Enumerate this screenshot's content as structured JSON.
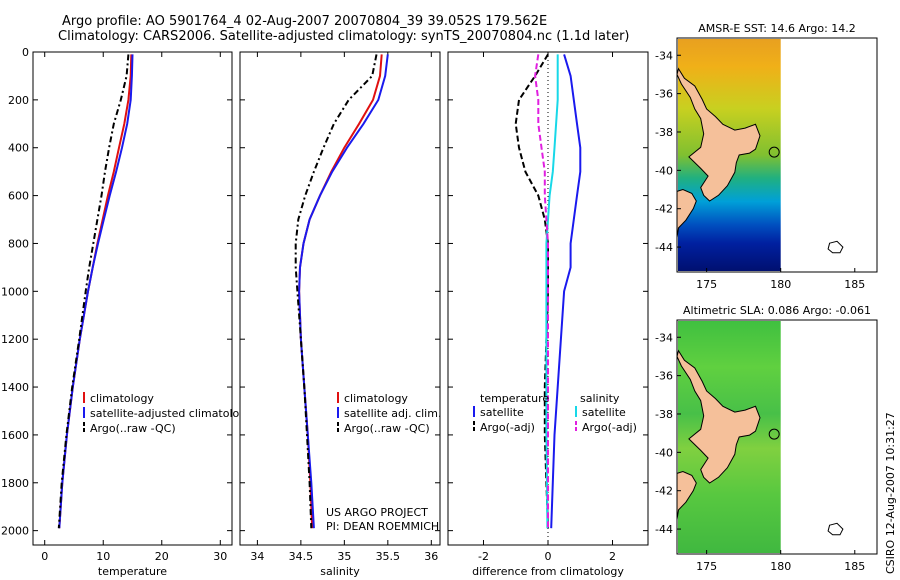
{
  "header": {
    "line1": "Argo profile: AO 5901764_4 02-Aug-2007 20070804_39 39.052S 179.562E",
    "line2": "Climatology: CARS2006. Satellite-adjusted climatology: synTS_20070804.nc (1.1d later)"
  },
  "colors": {
    "climatology": "#e01010",
    "satellite": "#1a1aee",
    "argo": "#000000",
    "satellite_salinity": "#18d8e8",
    "argo_salinity_adj": "#e020e0",
    "land": "#f5c09a"
  },
  "chart_data": [
    {
      "type": "line",
      "id": "temperature",
      "xlabel": "temperature",
      "ylabel": "",
      "xlim": [
        -2,
        32
      ],
      "ylim": [
        2060,
        0
      ],
      "xticks": [
        0,
        10,
        20,
        30
      ],
      "yticks": [
        0,
        200,
        400,
        600,
        800,
        1000,
        1200,
        1400,
        1600,
        1800,
        2000
      ],
      "legend": [
        "climatology",
        "satellite-adjusted climatology",
        "Argo(..raw -QC)"
      ],
      "series": [
        {
          "name": "climatology",
          "color": "#e01010",
          "dash": "",
          "depth": [
            10,
            100,
            200,
            300,
            400,
            500,
            600,
            700,
            800,
            900,
            1000,
            1200,
            1400,
            1600,
            1800,
            1990
          ],
          "values": [
            14.8,
            14.7,
            14.3,
            13.6,
            12.7,
            11.8,
            10.8,
            9.9,
            9.0,
            8.2,
            7.4,
            6.0,
            4.8,
            3.8,
            3.0,
            2.5
          ]
        },
        {
          "name": "satellite-adjusted climatology",
          "color": "#1a1aee",
          "dash": "",
          "depth": [
            10,
            100,
            200,
            300,
            400,
            500,
            600,
            700,
            800,
            900,
            1000,
            1200,
            1400,
            1600,
            1800,
            1990
          ],
          "values": [
            15.0,
            14.9,
            14.7,
            14.1,
            13.2,
            12.2,
            11.1,
            10.1,
            9.1,
            8.2,
            7.4,
            6.0,
            4.8,
            3.8,
            3.0,
            2.5
          ]
        },
        {
          "name": "Argo(..raw -QC)",
          "color": "#000000",
          "dash": "6,3,2,3",
          "depth": [
            10,
            100,
            200,
            300,
            400,
            500,
            600,
            700,
            800,
            900,
            1000,
            1200,
            1400,
            1600,
            1800,
            1990
          ],
          "values": [
            14.3,
            14.0,
            13.0,
            11.8,
            11.0,
            10.3,
            9.7,
            9.0,
            8.3,
            7.6,
            7.0,
            5.9,
            4.7,
            3.7,
            2.9,
            2.4
          ]
        }
      ]
    },
    {
      "type": "line",
      "id": "salinity",
      "xlabel": "salinity",
      "ylabel": "",
      "xlim": [
        33.8,
        36.1
      ],
      "ylim": [
        2060,
        0
      ],
      "xticks": [
        34,
        34.5,
        35,
        35.5,
        36
      ],
      "xticklabels": [
        "34",
        "34.5",
        "35",
        "35.5",
        "36"
      ],
      "legend": [
        "climatology",
        "satellite adj. clim.",
        "Argo(..raw -QC)"
      ],
      "annotation": [
        "US ARGO PROJECT",
        "PI: DEAN ROEMMICH"
      ],
      "series": [
        {
          "name": "climatology",
          "color": "#e01010",
          "dash": "",
          "depth": [
            10,
            100,
            200,
            300,
            400,
            500,
            600,
            700,
            800,
            900,
            1000,
            1200,
            1400,
            1600,
            1800,
            1990
          ],
          "values": [
            35.43,
            35.41,
            35.33,
            35.17,
            35.0,
            34.85,
            34.72,
            34.6,
            34.53,
            34.49,
            34.48,
            34.5,
            34.54,
            34.58,
            34.61,
            34.63
          ]
        },
        {
          "name": "satellite adj. clim.",
          "color": "#1a1aee",
          "dash": "",
          "depth": [
            10,
            100,
            200,
            300,
            400,
            500,
            600,
            700,
            800,
            900,
            1000,
            1200,
            1400,
            1600,
            1800,
            1990
          ],
          "values": [
            35.5,
            35.47,
            35.39,
            35.22,
            35.03,
            34.86,
            34.72,
            34.6,
            34.53,
            34.49,
            34.48,
            34.5,
            34.54,
            34.58,
            34.62,
            34.65
          ]
        },
        {
          "name": "Argo(..raw -QC)",
          "color": "#000000",
          "dash": "6,3,2,3",
          "depth": [
            10,
            100,
            200,
            300,
            400,
            500,
            600,
            700,
            800,
            900,
            1000,
            1200,
            1400,
            1600,
            1800,
            1990
          ],
          "values": [
            35.37,
            35.32,
            35.05,
            34.88,
            34.76,
            34.65,
            34.55,
            34.47,
            34.44,
            34.44,
            34.46,
            34.5,
            34.54,
            34.57,
            34.6,
            34.62
          ]
        }
      ]
    },
    {
      "type": "line",
      "id": "difference",
      "xlabel": "difference from climatology",
      "ylabel": "",
      "xlim": [
        -3.1,
        3.1
      ],
      "ylim": [
        2060,
        0
      ],
      "xticks": [
        -2,
        0,
        2
      ],
      "legend_left_title": "temperature",
      "legend_right_title": "salinity",
      "legend_left": [
        "satellite",
        "Argo(-adj)"
      ],
      "legend_right": [
        "satellite",
        "Argo(-adj)"
      ],
      "series": [
        {
          "name": "temperature satellite",
          "color": "#1a1aee",
          "dash": "",
          "depth": [
            10,
            100,
            200,
            300,
            400,
            500,
            600,
            700,
            800,
            900,
            1000,
            1200,
            1400,
            1600,
            1800,
            1990
          ],
          "values": [
            0.5,
            0.7,
            0.8,
            0.9,
            1.0,
            1.0,
            0.9,
            0.8,
            0.7,
            0.7,
            0.5,
            0.4,
            0.3,
            0.2,
            0.15,
            0.1
          ]
        },
        {
          "name": "temperature Argo(-adj)",
          "color": "#000000",
          "dash": "6,3",
          "depth": [
            10,
            100,
            200,
            300,
            400,
            500,
            600,
            700,
            800,
            900,
            1000,
            1200,
            1400,
            1600,
            1800,
            1990
          ],
          "values": [
            0.0,
            -0.4,
            -0.9,
            -1.0,
            -0.9,
            -0.7,
            -0.3,
            -0.1,
            0.0,
            0.0,
            0.0,
            -0.05,
            -0.1,
            -0.1,
            -0.05,
            0.0
          ]
        },
        {
          "name": "salinity satellite",
          "color": "#18d8e8",
          "dash": "",
          "depth": [
            10,
            100,
            200,
            300,
            400,
            500,
            600,
            700,
            800,
            900,
            1000,
            1200,
            1400,
            1600,
            1800,
            1990
          ],
          "values": [
            0.3,
            0.3,
            0.3,
            0.25,
            0.2,
            0.15,
            0.05,
            0.0,
            -0.05,
            -0.05,
            -0.05,
            -0.05,
            -0.05,
            -0.05,
            -0.03,
            -0.02
          ]
        },
        {
          "name": "salinity Argo(-adj)",
          "color": "#e020e0",
          "dash": "6,3",
          "depth": [
            10,
            100,
            200,
            300,
            400,
            500,
            600,
            700,
            800,
            900,
            1000,
            1200,
            1400,
            1600,
            1800,
            1990
          ],
          "values": [
            -0.3,
            -0.4,
            -0.3,
            -0.3,
            -0.2,
            -0.1,
            -0.1,
            -0.05,
            0.0,
            0.0,
            0.0,
            0.0,
            0.0,
            0.0,
            0.0,
            0.0
          ]
        }
      ]
    }
  ],
  "maps": [
    {
      "id": "sst-map",
      "title": "AMSR-E SST: 14.6 Argo: 14.2",
      "lonlim": [
        173,
        186.5
      ],
      "latlim": [
        -45.3,
        -33.1
      ],
      "xticks": [
        175,
        180,
        185
      ],
      "yticks": [
        -34,
        -36,
        -38,
        -40,
        -42,
        -44
      ],
      "float_position": [
        179.56,
        -39.05
      ]
    },
    {
      "id": "sla-map",
      "title": "Altimetric SLA: 0.086 Argo: -0.061",
      "lonlim": [
        173,
        186.5
      ],
      "latlim": [
        -45.3,
        -33.1
      ],
      "xticks": [
        175,
        180,
        185
      ],
      "yticks": [
        -34,
        -36,
        -38,
        -40,
        -42,
        -44
      ],
      "float_position": [
        179.56,
        -39.05
      ]
    }
  ],
  "stamp": "CSIRO 12-Aug-2007 10:31:27"
}
